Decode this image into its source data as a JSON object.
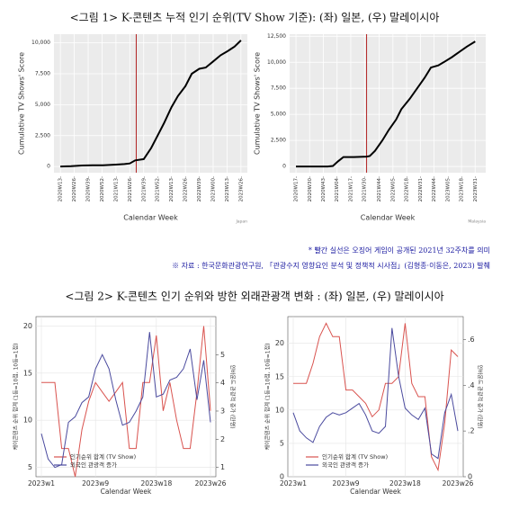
{
  "document": {
    "figure1_title": "<그림 1> K-콘텐츠 누적 인기 순위(TV Show 기준): (좌) 일본, (우) 말레이시아",
    "note1": "* 빨간 실선은 오징어 게임이 공개된 2021년 32주차를 의미",
    "note2": "※ 자료 : 한국문화관광연구원, 「관광수지 영향요인 분석 및 정책적 시사점」(김형종·이동은, 2023) 발췌",
    "figure2_title": "<그림 2> K-콘텐츠 인기 순위와 방한 외래관광객 변화 : (좌) 일본, (우) 말레이시아"
  },
  "chart_data": [
    {
      "type": "line",
      "caption": "Japan",
      "xlabel": "Calendar Week",
      "ylabel": "Cumulative TV Shows' Score",
      "color": "#000000",
      "vline": 71,
      "vline_color": "#b22222",
      "x": [
        0,
        10,
        20,
        30,
        40,
        50,
        60,
        65,
        70,
        78,
        85,
        91,
        97,
        104,
        110,
        117,
        123,
        130,
        136,
        143,
        150,
        156,
        163,
        169
      ],
      "values": [
        0,
        30,
        80,
        100,
        100,
        150,
        200,
        250,
        500,
        600,
        1500,
        2500,
        3500,
        4800,
        5700,
        6500,
        7500,
        7900,
        8000,
        8500,
        9000,
        9300,
        9700,
        10200
      ],
      "xlim": [
        -6,
        175
      ],
      "ylim": [
        -500,
        10700
      ],
      "xticks": [
        {
          "value": 0,
          "label": "2020W13-"
        },
        {
          "value": 13,
          "label": "2020W26-"
        },
        {
          "value": 26,
          "label": "2020W39-"
        },
        {
          "value": 39,
          "label": "2020W52-"
        },
        {
          "value": 52,
          "label": "2021W13-"
        },
        {
          "value": 65,
          "label": "2021W26-"
        },
        {
          "value": 78,
          "label": "2021W39-"
        },
        {
          "value": 91,
          "label": "2021W52-"
        },
        {
          "value": 104,
          "label": "2022W13-"
        },
        {
          "value": 117,
          "label": "2022W26-"
        },
        {
          "value": 130,
          "label": "2022W39-"
        },
        {
          "value": 143,
          "label": "2023W00-"
        },
        {
          "value": 156,
          "label": "2023W13-"
        },
        {
          "value": 169,
          "label": "2023W26-"
        }
      ],
      "yticks": [
        0,
        {
          "value": 2500,
          "label": "2,500"
        },
        {
          "value": 5000,
          "label": "5,000"
        },
        {
          "value": 7500,
          "label": "7,500"
        },
        {
          "value": 10000,
          "label": "10,000"
        }
      ]
    },
    {
      "type": "line",
      "caption": "Malaysia",
      "xlabel": "Calendar Week",
      "ylabel": "Cumulative TV Shows' Score",
      "color": "#000000",
      "vline": 67,
      "vline_color": "#b22222",
      "x": [
        0,
        10,
        20,
        30,
        35,
        40,
        45,
        55,
        67,
        70,
        75,
        82,
        88,
        95,
        100,
        108,
        115,
        122,
        128,
        135,
        140,
        148,
        155,
        162,
        170
      ],
      "values": [
        0,
        0,
        0,
        0,
        50,
        500,
        900,
        900,
        950,
        1000,
        1500,
        2500,
        3500,
        4500,
        5500,
        6500,
        7500,
        8500,
        9500,
        9700,
        10000,
        10500,
        11000,
        11500,
        12000
      ],
      "xlim": [
        -6,
        180
      ],
      "ylim": [
        -600,
        12700
      ],
      "xticks": [
        {
          "value": 0,
          "label": "2020W17-"
        },
        {
          "value": 13,
          "label": "2020W30-"
        },
        {
          "value": 26,
          "label": "2020W43-"
        },
        {
          "value": 39,
          "label": "2021W04-"
        },
        {
          "value": 52,
          "label": "2021W17-"
        },
        {
          "value": 65,
          "label": "2021W30-"
        },
        {
          "value": 79,
          "label": "2021W44-"
        },
        {
          "value": 92,
          "label": "2022W05-"
        },
        {
          "value": 105,
          "label": "2022W18-"
        },
        {
          "value": 118,
          "label": "2022W31-"
        },
        {
          "value": 131,
          "label": "2022W44-"
        },
        {
          "value": 144,
          "label": "2023W05-"
        },
        {
          "value": 157,
          "label": "2023W18-"
        },
        {
          "value": 170,
          "label": "2023W31-"
        }
      ],
      "yticks": [
        0,
        {
          "value": 2500,
          "label": "2,500"
        },
        {
          "value": 5000,
          "label": "5,000"
        },
        {
          "value": 7500,
          "label": "7,500"
        },
        {
          "value": 10000,
          "label": "10,000"
        },
        {
          "value": 12500,
          "label": "12,500"
        }
      ]
    },
    {
      "type": "line",
      "xlabel": "Calendar Week",
      "ylabel": "케이콘텐츠 순위 합계 (1등=10점, 10등=1점)",
      "y2label": "인바운드 관광객 증가 (만명)",
      "legend": "lower left",
      "categories": [
        "2023w1",
        null,
        null,
        null,
        null,
        null,
        null,
        null,
        "2023w9",
        null,
        null,
        null,
        null,
        null,
        null,
        null,
        null,
        "2023w18",
        null,
        null,
        null,
        null,
        null,
        null,
        null,
        "2023w26"
      ],
      "ylim": [
        4,
        21
      ],
      "yticks": [
        5,
        10,
        15,
        20
      ],
      "y2lim": [
        0.67,
        6.35
      ],
      "y2ticks": [
        1,
        2,
        3,
        4,
        5
      ],
      "series": [
        {
          "name": "인기순위 합계 (TV Show)",
          "color": "#d9534f",
          "values": [
            14,
            14,
            14,
            7,
            7,
            4,
            9,
            12,
            14,
            13,
            12,
            13,
            14,
            7,
            7,
            14,
            14,
            19,
            11,
            14,
            10,
            7,
            7,
            13,
            20,
            11
          ]
        },
        {
          "name": "외국인 관광객 증가",
          "color": "#4a4a9e",
          "axis": "y2",
          "values": [
            2.2,
            1.3,
            1,
            1.1,
            2.6,
            2.8,
            3.3,
            3.5,
            4.5,
            5,
            4.5,
            3.4,
            2.5,
            2.6,
            3,
            3.5,
            5.8,
            3.5,
            3.6,
            4.1,
            4.2,
            4.5,
            5.2,
            3.4,
            4.8,
            2.6
          ]
        }
      ]
    },
    {
      "type": "line",
      "xlabel": "Calendar Week",
      "ylabel": "케이콘텐츠 순위 합계 (1등=10점, 10등=1점)",
      "y2label": "인바운드 관광객 증가 (만명)",
      "legend": "lower left",
      "categories": [
        "2023w1",
        null,
        null,
        null,
        null,
        null,
        null,
        null,
        "2023w9",
        null,
        null,
        null,
        null,
        null,
        null,
        null,
        null,
        "2023w18",
        null,
        null,
        null,
        null,
        null,
        null,
        null,
        "2023w26"
      ],
      "ylim": [
        0,
        24
      ],
      "yticks": [
        0,
        5,
        10,
        15,
        20
      ],
      "y2lim": [
        0,
        0.7
      ],
      "y2ticks": [
        0,
        {
          "value": 0.2,
          "label": ".2"
        },
        {
          "value": 0.4,
          "label": ".4"
        },
        {
          "value": 0.6,
          "label": ".6"
        }
      ],
      "series": [
        {
          "name": "인기순위 합계 (TV Show)",
          "color": "#d9534f",
          "values": [
            14,
            14,
            14,
            17,
            21,
            23,
            21,
            21,
            13,
            13,
            12,
            11,
            9,
            10,
            14,
            14,
            15,
            23,
            14,
            12,
            12,
            3,
            1,
            8,
            19,
            18
          ]
        },
        {
          "name": "외국인 관광객 증가",
          "color": "#4a4a9e",
          "axis": "y2",
          "values": [
            0.28,
            0.2,
            0.17,
            0.15,
            0.22,
            0.26,
            0.28,
            0.27,
            0.28,
            0.3,
            0.32,
            0.27,
            0.2,
            0.19,
            0.22,
            0.65,
            0.44,
            0.3,
            0.27,
            0.25,
            0.3,
            0.1,
            0.08,
            0.28,
            0.36,
            0.2
          ]
        }
      ]
    }
  ]
}
